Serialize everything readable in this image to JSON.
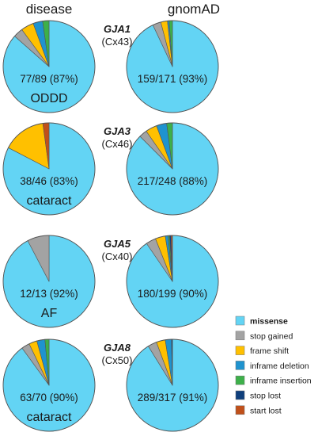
{
  "chart_data": {
    "type": "pie",
    "column_headers": [
      "disease",
      "gnomAD"
    ],
    "categories": [
      "missense",
      "stop gained",
      "frame shift",
      "inframe deletion",
      "inframe insertion",
      "stop lost",
      "start lost"
    ],
    "colors": [
      "#63d4f4",
      "#a3a3a3",
      "#ffc000",
      "#1f93cf",
      "#3db04a",
      "#0f3f7c",
      "#c0501a"
    ],
    "legend_bold_index": 0,
    "legend_position": "bottom-right",
    "rows": [
      {
        "gene": "GJA1",
        "protein": "(Cx43)",
        "disease": {
          "label": "77/89 (87%)",
          "phenotype": "ODDD",
          "values": [
            77,
            3,
            4,
            3,
            2,
            0,
            0
          ]
        },
        "gnomad": {
          "label": "159/171 (93%)",
          "phenotype": "",
          "values": [
            159,
            5,
            4,
            1,
            2,
            0,
            0
          ]
        }
      },
      {
        "gene": "GJA3",
        "protein": "(Cx46)",
        "disease": {
          "label": "38/46 (83%)",
          "phenotype": "cataract",
          "values": [
            38,
            0,
            7,
            0,
            0,
            0,
            1
          ]
        },
        "gnomad": {
          "label": "217/248 (88%)",
          "phenotype": "",
          "values": [
            217,
            7,
            10,
            9,
            5,
            0,
            0
          ]
        }
      },
      {
        "gene": "GJA5",
        "protein": "(Cx40)",
        "disease": {
          "label": "12/13 (92%)",
          "phenotype": "AF",
          "values": [
            12,
            1,
            0,
            0,
            0,
            0,
            0
          ]
        },
        "gnomad": {
          "label": "180/199 (90%)",
          "phenotype": "",
          "values": [
            180,
            7,
            7,
            2,
            1,
            1,
            1
          ]
        }
      },
      {
        "gene": "GJA8",
        "protein": "(Cx50)",
        "disease": {
          "label": "63/70 (90%)",
          "phenotype": "cataract",
          "values": [
            63,
            2,
            2,
            2,
            1,
            0,
            0
          ]
        },
        "gnomad": {
          "label": "289/317 (91%)",
          "phenotype": "",
          "values": [
            289,
            10,
            10,
            7,
            0,
            1,
            0
          ]
        }
      }
    ]
  }
}
